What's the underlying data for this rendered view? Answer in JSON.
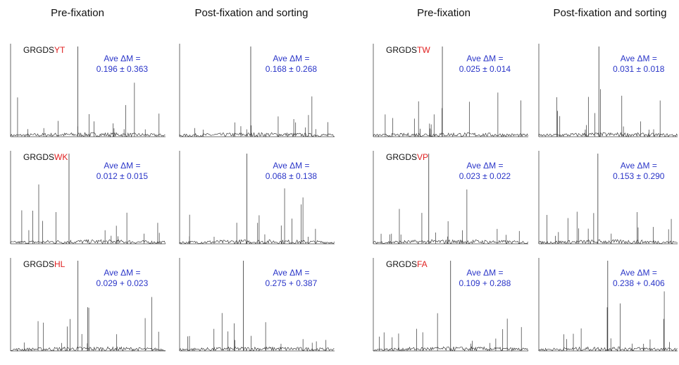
{
  "headers": [
    "Pre-fixation",
    "Post-fixation and sorting",
    "Pre-fixation",
    "Post-fixation and sorting"
  ],
  "groups": [
    {
      "rows": [
        {
          "prefix": "GRGDS",
          "suffix": "YT",
          "pre": {
            "label": "Ave ΔM =",
            "value": "0.196 ± 0.363"
          },
          "post": {
            "label": "Ave ΔM =",
            "value": "0.168 ± 0.268"
          }
        },
        {
          "prefix": "GRGDS",
          "suffix": "WK",
          "pre": {
            "label": "Ave ΔM =",
            "value": "0.012 ± 0.015"
          },
          "post": {
            "label": "Ave ΔM =",
            "value": "0.068 ± 0.138"
          }
        },
        {
          "prefix": "GRGDS",
          "suffix": "HL",
          "pre": {
            "label": "Ave ΔM =",
            "value": "0.029 + 0.023"
          },
          "post": {
            "label": "Ave ΔM =",
            "value": "0.275 + 0.387"
          }
        }
      ]
    },
    {
      "rows": [
        {
          "prefix": "GRGDS",
          "suffix": "TW",
          "pre": {
            "label": "Ave ΔM =",
            "value": "0.025 ± 0.014"
          },
          "post": {
            "label": "Ave ΔM =",
            "value": "0.031 ± 0.018"
          }
        },
        {
          "prefix": "GRGDS",
          "suffix": "VP",
          "pre": {
            "label": "Ave ΔM =",
            "value": "0.023 ± 0.022"
          },
          "post": {
            "label": "Ave ΔM =",
            "value": "0.153 ± 0.290"
          }
        },
        {
          "prefix": "GRGDS",
          "suffix": "FA",
          "pre": {
            "label": "Ave ΔM =",
            "value": "0.109 + 0.288"
          },
          "post": {
            "label": "Ave ΔM =",
            "value": "0.238 + 0.406"
          }
        }
      ]
    }
  ]
}
